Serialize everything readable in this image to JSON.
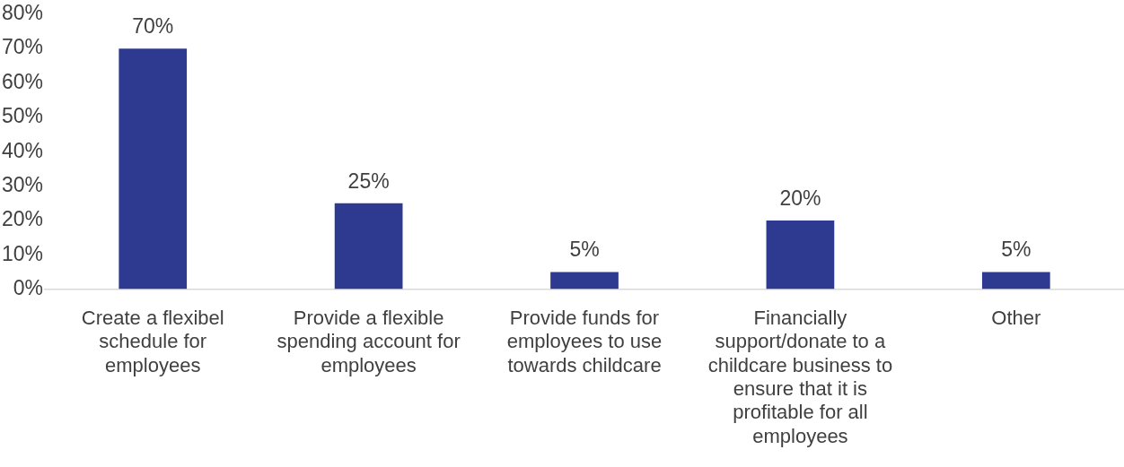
{
  "chart_data": {
    "type": "bar",
    "categories": [
      "Create a flexibel schedule for employees",
      "Provide a flexible spending account for employees",
      "Provide funds for employees to use towards childcare",
      "Financially support/donate to a childcare business to ensure that it is profitable for all employees",
      "Other"
    ],
    "values": [
      70,
      25,
      5,
      20,
      5
    ],
    "value_labels": [
      "70%",
      "25%",
      "5%",
      "20%",
      "5%"
    ],
    "color": "#2e3a8f",
    "ylim": [
      0,
      80
    ],
    "yticks": [
      {
        "value": 0,
        "label": "0%"
      },
      {
        "value": 10,
        "label": "10%"
      },
      {
        "value": 20,
        "label": "20%"
      },
      {
        "value": 30,
        "label": "30%"
      },
      {
        "value": 40,
        "label": "40%"
      },
      {
        "value": 50,
        "label": "50%"
      },
      {
        "value": 60,
        "label": "60%"
      },
      {
        "value": 70,
        "label": "70%"
      },
      {
        "value": 80,
        "label": "80%"
      }
    ],
    "grid": false,
    "legend": false
  }
}
